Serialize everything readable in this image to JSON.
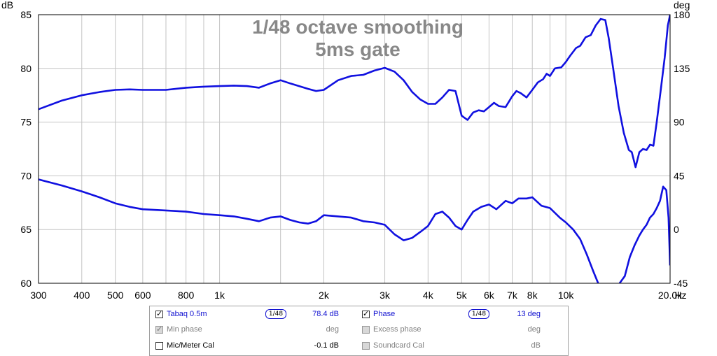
{
  "chart_data": {
    "type": "line",
    "title": "1/48 octave smoothing",
    "subtitle": "5ms gate",
    "y_left_unit": "dB",
    "y_right_unit": "deg",
    "x_unit": "Hz",
    "xscale": "log",
    "xlim": [
      300,
      20000
    ],
    "ylim_left": [
      60,
      85
    ],
    "ylim_right": [
      -45,
      180
    ],
    "x_ticks": [
      {
        "value": 300,
        "label": "300"
      },
      {
        "value": 400,
        "label": "400"
      },
      {
        "value": 500,
        "label": "500"
      },
      {
        "value": 600,
        "label": "600"
      },
      {
        "value": 800,
        "label": "800"
      },
      {
        "value": 1000,
        "label": "1k"
      },
      {
        "value": 2000,
        "label": "2k"
      },
      {
        "value": 3000,
        "label": "3k"
      },
      {
        "value": 4000,
        "label": "4k"
      },
      {
        "value": 5000,
        "label": "5k"
      },
      {
        "value": 6000,
        "label": "6k"
      },
      {
        "value": 7000,
        "label": "7k"
      },
      {
        "value": 8000,
        "label": "8k"
      },
      {
        "value": 10000,
        "label": "10k"
      },
      {
        "value": 20000,
        "label": "20.0k"
      }
    ],
    "x_minor_ticks": [
      700,
      900,
      1500,
      9000
    ],
    "y_left_ticks": [
      {
        "value": 85,
        "label": "85"
      },
      {
        "value": 80,
        "label": "80"
      },
      {
        "value": 75,
        "label": "75"
      },
      {
        "value": 70,
        "label": "70"
      },
      {
        "value": 65,
        "label": "65"
      },
      {
        "value": 60,
        "label": "60"
      }
    ],
    "y_right_ticks": [
      {
        "value": 180,
        "label": "180"
      },
      {
        "value": 135,
        "label": "135"
      },
      {
        "value": 90,
        "label": "90"
      },
      {
        "value": 45,
        "label": "45"
      },
      {
        "value": 0,
        "label": "0"
      },
      {
        "value": -45,
        "label": "-45"
      }
    ],
    "series": [
      {
        "name": "Tabaq 0.5m",
        "axis": "left",
        "color": "#1010e0",
        "points": [
          [
            300,
            76.2
          ],
          [
            350,
            77.0
          ],
          [
            400,
            77.5
          ],
          [
            450,
            77.8
          ],
          [
            500,
            78.0
          ],
          [
            550,
            78.05
          ],
          [
            600,
            78.0
          ],
          [
            700,
            78.0
          ],
          [
            800,
            78.2
          ],
          [
            900,
            78.3
          ],
          [
            1000,
            78.35
          ],
          [
            1100,
            78.4
          ],
          [
            1200,
            78.35
          ],
          [
            1300,
            78.2
          ],
          [
            1400,
            78.6
          ],
          [
            1500,
            78.9
          ],
          [
            1600,
            78.6
          ],
          [
            1800,
            78.1
          ],
          [
            1900,
            77.9
          ],
          [
            2000,
            78.0
          ],
          [
            2200,
            78.9
          ],
          [
            2400,
            79.3
          ],
          [
            2600,
            79.4
          ],
          [
            2800,
            79.8
          ],
          [
            3000,
            80.05
          ],
          [
            3200,
            79.7
          ],
          [
            3400,
            78.9
          ],
          [
            3600,
            77.8
          ],
          [
            3800,
            77.1
          ],
          [
            4000,
            76.7
          ],
          [
            4200,
            76.7
          ],
          [
            4400,
            77.3
          ],
          [
            4600,
            78.0
          ],
          [
            4800,
            77.9
          ],
          [
            5000,
            75.6
          ],
          [
            5200,
            75.2
          ],
          [
            5400,
            75.9
          ],
          [
            5600,
            76.1
          ],
          [
            5800,
            76.0
          ],
          [
            6000,
            76.4
          ],
          [
            6200,
            76.8
          ],
          [
            6400,
            76.5
          ],
          [
            6700,
            76.4
          ],
          [
            7000,
            77.4
          ],
          [
            7200,
            77.9
          ],
          [
            7400,
            77.7
          ],
          [
            7700,
            77.3
          ],
          [
            8000,
            78.0
          ],
          [
            8300,
            78.7
          ],
          [
            8600,
            79.0
          ],
          [
            8800,
            79.5
          ],
          [
            9000,
            79.3
          ],
          [
            9300,
            80.0
          ],
          [
            9700,
            80.1
          ],
          [
            10000,
            80.6
          ],
          [
            10300,
            81.2
          ],
          [
            10700,
            81.9
          ],
          [
            11000,
            82.1
          ],
          [
            11400,
            82.9
          ],
          [
            11800,
            83.1
          ],
          [
            12200,
            84.0
          ],
          [
            12600,
            84.6
          ],
          [
            13000,
            84.5
          ],
          [
            13300,
            82.8
          ],
          [
            13700,
            80.0
          ],
          [
            14200,
            76.5
          ],
          [
            14700,
            74.0
          ],
          [
            15200,
            72.4
          ],
          [
            15500,
            72.2
          ],
          [
            15900,
            70.8
          ],
          [
            16300,
            72.2
          ],
          [
            16700,
            72.5
          ],
          [
            17100,
            72.4
          ],
          [
            17500,
            72.9
          ],
          [
            17900,
            72.8
          ],
          [
            18300,
            75.0
          ],
          [
            18800,
            78.0
          ],
          [
            19300,
            81.0
          ],
          [
            19700,
            84.0
          ],
          [
            20000,
            85.0
          ]
        ]
      },
      {
        "name": "Phase",
        "axis": "right",
        "color": "#1010e0",
        "points": [
          [
            300,
            42
          ],
          [
            350,
            37
          ],
          [
            400,
            32
          ],
          [
            450,
            27
          ],
          [
            500,
            22
          ],
          [
            550,
            19
          ],
          [
            600,
            17
          ],
          [
            700,
            16
          ],
          [
            800,
            15
          ],
          [
            900,
            13
          ],
          [
            1000,
            12
          ],
          [
            1100,
            11
          ],
          [
            1200,
            9
          ],
          [
            1300,
            7
          ],
          [
            1400,
            10
          ],
          [
            1500,
            11
          ],
          [
            1600,
            8
          ],
          [
            1700,
            6
          ],
          [
            1800,
            5
          ],
          [
            1900,
            7
          ],
          [
            2000,
            12
          ],
          [
            2200,
            11
          ],
          [
            2400,
            10
          ],
          [
            2600,
            7
          ],
          [
            2800,
            6
          ],
          [
            3000,
            4
          ],
          [
            3200,
            -4
          ],
          [
            3400,
            -9
          ],
          [
            3600,
            -7
          ],
          [
            3800,
            -2
          ],
          [
            4000,
            3
          ],
          [
            4200,
            13
          ],
          [
            4400,
            15
          ],
          [
            4600,
            10
          ],
          [
            4800,
            3
          ],
          [
            5000,
            0
          ],
          [
            5200,
            8
          ],
          [
            5400,
            15
          ],
          [
            5700,
            19
          ],
          [
            6000,
            21
          ],
          [
            6300,
            17
          ],
          [
            6700,
            24
          ],
          [
            7000,
            22
          ],
          [
            7300,
            26
          ],
          [
            7700,
            26
          ],
          [
            8000,
            27
          ],
          [
            8500,
            20
          ],
          [
            9000,
            18
          ],
          [
            9600,
            10
          ],
          [
            10000,
            6
          ],
          [
            10500,
            0
          ],
          [
            11000,
            -8
          ],
          [
            11500,
            -21
          ],
          [
            12000,
            -35
          ],
          [
            12400,
            -45
          ]
        ]
      },
      {
        "name": "Phase",
        "axis": "right",
        "color": "#1010e0",
        "points": [
          [
            14300,
            -45
          ],
          [
            14800,
            -39
          ],
          [
            15300,
            -23
          ],
          [
            15800,
            -13
          ],
          [
            16300,
            -5
          ],
          [
            16700,
            0
          ],
          [
            17100,
            4
          ],
          [
            17500,
            10
          ],
          [
            17900,
            13
          ],
          [
            18300,
            18
          ],
          [
            18700,
            24
          ],
          [
            19100,
            36
          ],
          [
            19500,
            33
          ],
          [
            19800,
            10
          ],
          [
            20000,
            -30
          ]
        ]
      }
    ]
  },
  "legend": {
    "rows": [
      {
        "left": {
          "label": "Tabaq 0.5m",
          "checked": true,
          "enabled": true,
          "smoothing": "1/48",
          "value": "78.4 dB"
        },
        "right": {
          "label": "Phase",
          "checked": true,
          "enabled": true,
          "smoothing": "1/48",
          "value": "13 deg"
        }
      },
      {
        "left": {
          "label": "Min phase",
          "checked": true,
          "enabled": false,
          "value": "deg"
        },
        "right": {
          "label": "Excess phase",
          "checked": false,
          "enabled": false,
          "value": "deg"
        }
      },
      {
        "left": {
          "label": "Mic/Meter Cal",
          "checked": false,
          "enabled": true,
          "value": "-0.1 dB"
        },
        "right": {
          "label": "Soundcard Cal",
          "checked": false,
          "enabled": false,
          "value": "dB"
        }
      }
    ],
    "active_color": "#1010d0",
    "disabled_color": "#808080"
  }
}
